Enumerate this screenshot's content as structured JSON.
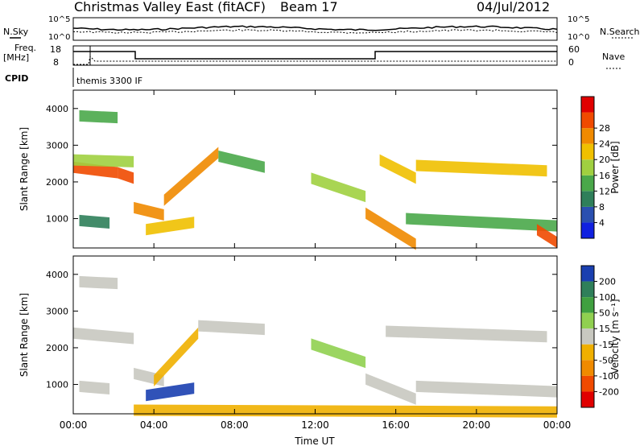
{
  "header": {
    "title": "Christmas Valley East (fitACF)",
    "beam": "Beam 17",
    "date": "04/Jul/2012"
  },
  "strip_labels": {
    "nsky": "N.Sky",
    "nsearch": "N.Search",
    "freq": "Freq.",
    "mhz": "[MHz]",
    "nave": "Nave",
    "cpid": "CPID",
    "cpid_value": "themis 3300 IF",
    "noise_ticks_left": [
      "10^5",
      "10^0"
    ],
    "noise_ticks_right": [
      "10^5",
      "10^0"
    ],
    "freq_ticks": [
      "18",
      "8"
    ],
    "nave_ticks": [
      "60",
      "0"
    ]
  },
  "colors": {
    "power_scale": [
      "#1020e0",
      "#2a4fb0",
      "#2f7f5a",
      "#4aa84a",
      "#a0d040",
      "#f0c000",
      "#f08a00",
      "#f04a00",
      "#e00000"
    ],
    "velocity_scale": [
      "#e00000",
      "#f04a00",
      "#f08a00",
      "#f0b000",
      "#c8c8c0",
      "#90d050",
      "#40a040",
      "#2f7f5a",
      "#1a3fb0"
    ]
  },
  "chart_data": [
    {
      "type": "heatmap",
      "name": "power",
      "ylabel": "Slant Range [km]",
      "y_ticks": [
        "1000",
        "2000",
        "3000",
        "4000"
      ],
      "ylim": [
        200,
        4500
      ],
      "colorbar": {
        "label": "Power [dB]",
        "ticks": [
          "4",
          "8",
          "12",
          "16",
          "20",
          "24",
          "28"
        ],
        "range": [
          0,
          32
        ]
      },
      "bands": [
        {
          "x": [
            0.0,
            2.2
          ],
          "y": [
            2400,
            2250
          ],
          "value": 26
        },
        {
          "x": [
            2.2,
            3.0
          ],
          "y": [
            2250,
            2100
          ],
          "value": 28
        },
        {
          "x": [
            0.0,
            3.0
          ],
          "y": [
            2600,
            2550
          ],
          "value": 16
        },
        {
          "x": [
            0.3,
            2.2
          ],
          "y": [
            3800,
            3750
          ],
          "value": 14
        },
        {
          "x": [
            0.3,
            1.8
          ],
          "y": [
            950,
            880
          ],
          "value": 10
        },
        {
          "x": [
            3.0,
            4.5
          ],
          "y": [
            1300,
            1100
          ],
          "value": 24
        },
        {
          "x": [
            4.5,
            7.2
          ],
          "y": [
            1500,
            2800
          ],
          "value": 24
        },
        {
          "x": [
            3.6,
            6.0
          ],
          "y": [
            700,
            900
          ],
          "value": 20
        },
        {
          "x": [
            7.2,
            9.5
          ],
          "y": [
            2700,
            2400
          ],
          "value": 14
        },
        {
          "x": [
            11.8,
            14.5
          ],
          "y": [
            2100,
            1600
          ],
          "value": 16
        },
        {
          "x": [
            14.5,
            17.0
          ],
          "y": [
            1150,
            300
          ],
          "value": 22
        },
        {
          "x": [
            15.2,
            17.0
          ],
          "y": [
            2600,
            2100
          ],
          "value": 20
        },
        {
          "x": [
            17.0,
            23.5
          ],
          "y": [
            2450,
            2300
          ],
          "value": 20
        },
        {
          "x": [
            16.5,
            24.0
          ],
          "y": [
            1000,
            800
          ],
          "value": 12
        },
        {
          "x": [
            23.0,
            24.0
          ],
          "y": [
            700,
            350
          ],
          "value": 28
        }
      ]
    },
    {
      "type": "heatmap",
      "name": "velocity",
      "ylabel": "Slant Range [km]",
      "y_ticks": [
        "1000",
        "2000",
        "3000",
        "4000"
      ],
      "ylim": [
        200,
        4500
      ],
      "colorbar": {
        "label": "Velocity [m s⁻¹]",
        "ticks": [
          "200",
          "100",
          "50",
          "15",
          "-15",
          "-50",
          "-100",
          "-200"
        ],
        "range": [
          -250,
          250
        ]
      },
      "bands": [
        {
          "x": [
            0.0,
            3.0
          ],
          "y": [
            2400,
            2250
          ],
          "value": 0
        },
        {
          "x": [
            0.3,
            2.2
          ],
          "y": [
            3800,
            3750
          ],
          "value": 0
        },
        {
          "x": [
            0.3,
            1.8
          ],
          "y": [
            950,
            880
          ],
          "value": 0
        },
        {
          "x": [
            3.0,
            4.5
          ],
          "y": [
            1300,
            1100
          ],
          "value": 0
        },
        {
          "x": [
            3.6,
            6.0
          ],
          "y": [
            700,
            900
          ],
          "value": 210
        },
        {
          "x": [
            4.0,
            6.2
          ],
          "y": [
            1100,
            2400
          ],
          "value": -60
        },
        {
          "x": [
            6.2,
            9.5
          ],
          "y": [
            2600,
            2500
          ],
          "value": 0
        },
        {
          "x": [
            11.8,
            14.5
          ],
          "y": [
            2100,
            1600
          ],
          "value": 40
        },
        {
          "x": [
            14.5,
            17.0
          ],
          "y": [
            1150,
            600
          ],
          "value": 0
        },
        {
          "x": [
            15.5,
            23.5
          ],
          "y": [
            2450,
            2300
          ],
          "value": 0
        },
        {
          "x": [
            17.0,
            24.0
          ],
          "y": [
            950,
            800
          ],
          "value": 0
        },
        {
          "x": [
            3.0,
            24.0
          ],
          "y": [
            300,
            250
          ],
          "value": -60
        }
      ]
    }
  ],
  "x_axis": {
    "label": "Time UT",
    "ticks": [
      "00:00",
      "04:00",
      "08:00",
      "12:00",
      "16:00",
      "20:00",
      "00:00"
    ],
    "range": [
      0,
      24
    ]
  }
}
